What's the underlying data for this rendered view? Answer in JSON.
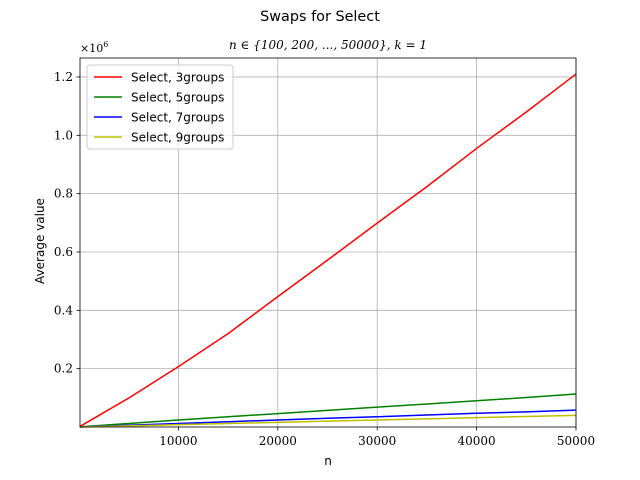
{
  "chart_data": {
    "type": "line",
    "title": "Swaps for Select",
    "subtitle": "n ∈ {100, 200, ..., 50000}, k = 1",
    "xlabel": "n",
    "ylabel": "Average value",
    "y_multiplier_label": "×10",
    "y_multiplier_exponent": "6",
    "xlim": [
      100,
      50000
    ],
    "ylim": [
      0,
      1.265
    ],
    "x_ticks": [
      10000,
      20000,
      30000,
      40000,
      50000
    ],
    "x_tick_labels": [
      "10000",
      "20000",
      "30000",
      "40000",
      "50000"
    ],
    "y_ticks": [
      0.2,
      0.4,
      0.6,
      0.8,
      1.0,
      1.2
    ],
    "y_tick_labels": [
      "0.2",
      "0.4",
      "0.6",
      "0.8",
      "1.0",
      "1.2"
    ],
    "grid": true,
    "legend_position": "top-left",
    "x": [
      100,
      5000,
      10000,
      15000,
      20000,
      25000,
      30000,
      35000,
      40000,
      45000,
      50000
    ],
    "series": [
      {
        "name": "Select, 3groups",
        "color": "#ff0000",
        "values": [
          0.002,
          0.099,
          0.207,
          0.32,
          0.447,
          0.572,
          0.699,
          0.824,
          0.955,
          1.08,
          1.21
        ]
      },
      {
        "name": "Select, 5groups",
        "color": "#008000",
        "values": [
          0.0003,
          0.012,
          0.024,
          0.035,
          0.046,
          0.057,
          0.068,
          0.079,
          0.09,
          0.101,
          0.113
        ]
      },
      {
        "name": "Select, 7groups",
        "color": "#0000ff",
        "values": [
          0.0002,
          0.006,
          0.012,
          0.018,
          0.024,
          0.03,
          0.035,
          0.041,
          0.047,
          0.052,
          0.058
        ]
      },
      {
        "name": "Select, 9groups",
        "color": "#bfbf00",
        "values": [
          0.0001,
          0.004,
          0.008,
          0.012,
          0.016,
          0.02,
          0.024,
          0.028,
          0.032,
          0.036,
          0.04
        ]
      }
    ]
  }
}
